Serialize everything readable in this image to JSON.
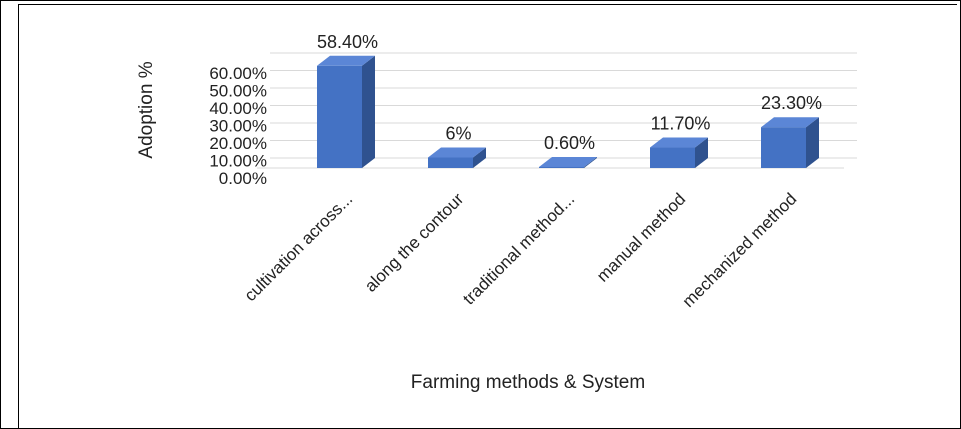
{
  "chart_data": {
    "type": "bar",
    "style": "3d-column",
    "categories": [
      "cultivation across...",
      "along the contour",
      "traditional method...",
      "manual method",
      "mechanized method"
    ],
    "values": [
      58.4,
      6,
      0.6,
      11.7,
      23.3
    ],
    "data_labels": [
      "58.40%",
      "6%",
      "0.60%",
      "11.70%",
      "23.30%"
    ],
    "xlabel": "Farming methods & System",
    "ylabel": "Adoption %",
    "ylim": [
      0,
      60
    ],
    "yticks": [
      "0.00%",
      "10.00%",
      "20.00%",
      "30.00%",
      "40.00%",
      "50.00%",
      "60.00%"
    ],
    "grid": true,
    "legend": "none",
    "colors": {
      "front": "#4472c4",
      "top": "#5b86d6",
      "side": "#2f528f",
      "grid": "#d9d9d9"
    }
  }
}
